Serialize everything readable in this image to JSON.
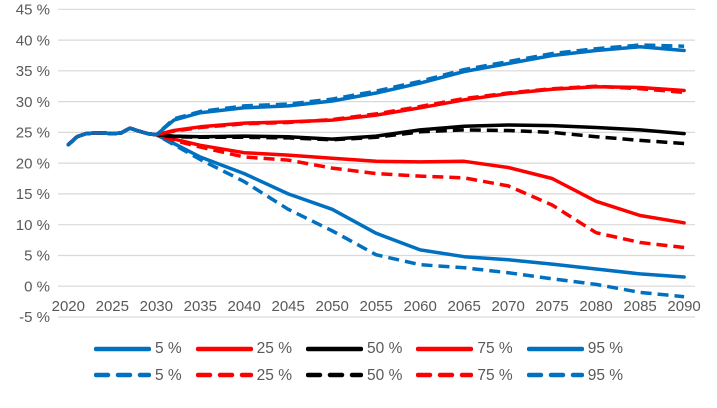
{
  "chart_data": {
    "type": "line",
    "title": "",
    "xlabel": "",
    "ylabel": "",
    "grid": "horizontal",
    "legend_position": "bottom",
    "ylim": [
      -5,
      45
    ],
    "y_tick_step": 5,
    "y_tick_labels": [
      "45 %",
      "40 %",
      "35 %",
      "30 %",
      "25 %",
      "20 %",
      "15 %",
      "10 %",
      "5 %",
      "0 %",
      "-5 %"
    ],
    "x_tick_years": [
      2020,
      2025,
      2030,
      2035,
      2040,
      2045,
      2050,
      2055,
      2060,
      2065,
      2070,
      2075,
      2080,
      2085,
      2090
    ],
    "x_tick_labels": [
      "2020",
      "2025",
      "2030",
      "2035",
      "2040",
      "2045",
      "2050",
      "2055",
      "2060",
      "2065",
      "2070",
      "2075",
      "2080",
      "2085",
      "2090"
    ],
    "x_years": [
      2020,
      2021,
      2022,
      2023,
      2024,
      2025,
      2026,
      2027,
      2028,
      2029,
      2030,
      2032,
      2035,
      2040,
      2045,
      2050,
      2055,
      2060,
      2065,
      2070,
      2075,
      2080,
      2085,
      2090
    ],
    "series": [
      {
        "id": "p5-solid",
        "label": "5 %",
        "color": "#0070C0",
        "dash": "solid",
        "values": [
          23.0,
          24.3,
          24.8,
          24.9,
          24.9,
          24.8,
          24.9,
          25.7,
          25.2,
          24.8,
          24.6,
          23.2,
          21.0,
          18.3,
          15.0,
          12.5,
          8.6,
          5.9,
          4.8,
          4.3,
          3.6,
          2.8,
          2.0,
          1.5
        ]
      },
      {
        "id": "p25-solid",
        "label": "25 %",
        "color": "#FF0000",
        "dash": "solid",
        "values": [
          23.0,
          24.3,
          24.8,
          24.9,
          24.9,
          24.8,
          24.9,
          25.7,
          25.2,
          24.8,
          24.6,
          23.9,
          22.9,
          21.7,
          21.3,
          20.8,
          20.3,
          20.2,
          20.3,
          19.3,
          17.5,
          13.8,
          11.5,
          10.3
        ]
      },
      {
        "id": "p50-solid",
        "label": "50 %",
        "color": "#000000",
        "dash": "solid",
        "values": [
          23.0,
          24.3,
          24.8,
          24.9,
          24.9,
          24.8,
          24.9,
          25.7,
          25.2,
          24.8,
          24.6,
          24.4,
          24.3,
          24.4,
          24.3,
          23.9,
          24.4,
          25.4,
          26.0,
          26.2,
          26.1,
          25.8,
          25.4,
          24.8
        ]
      },
      {
        "id": "p75-solid",
        "label": "75 %",
        "color": "#FF0000",
        "dash": "solid",
        "values": [
          23.0,
          24.3,
          24.8,
          24.9,
          24.9,
          24.8,
          24.9,
          25.7,
          25.2,
          24.8,
          24.6,
          25.3,
          25.9,
          26.5,
          26.7,
          27.0,
          27.8,
          29.0,
          30.3,
          31.3,
          32.0,
          32.4,
          32.3,
          31.8
        ]
      },
      {
        "id": "p95-solid",
        "label": "95 %",
        "color": "#0070C0",
        "dash": "solid",
        "values": [
          23.0,
          24.3,
          24.8,
          24.9,
          24.9,
          24.8,
          24.9,
          25.7,
          25.2,
          24.8,
          24.6,
          27.0,
          28.2,
          29.0,
          29.3,
          30.1,
          31.4,
          33.0,
          34.9,
          36.2,
          37.5,
          38.3,
          38.9,
          38.3
        ]
      },
      {
        "id": "p5-dashed",
        "label": "5 %",
        "color": "#0070C0",
        "dash": "dashed",
        "values": [
          23.0,
          24.3,
          24.8,
          24.9,
          24.9,
          24.8,
          24.9,
          25.7,
          25.2,
          24.8,
          24.6,
          23.0,
          20.6,
          17.0,
          12.5,
          9.0,
          5.1,
          3.5,
          3.0,
          2.2,
          1.2,
          0.3,
          -1.0,
          -1.7
        ]
      },
      {
        "id": "p25-dashed",
        "label": "25 %",
        "color": "#FF0000",
        "dash": "dashed",
        "values": [
          23.0,
          24.3,
          24.8,
          24.9,
          24.9,
          24.8,
          24.9,
          25.7,
          25.2,
          24.8,
          24.6,
          23.7,
          22.6,
          21.0,
          20.5,
          19.2,
          18.3,
          17.9,
          17.6,
          16.3,
          13.2,
          8.7,
          7.1,
          6.3
        ]
      },
      {
        "id": "p50-dashed",
        "label": "50 %",
        "color": "#000000",
        "dash": "dashed",
        "values": [
          23.0,
          24.3,
          24.8,
          24.9,
          24.9,
          24.8,
          24.9,
          25.7,
          25.2,
          24.8,
          24.6,
          24.3,
          24.2,
          24.2,
          24.1,
          23.8,
          24.2,
          25.1,
          25.4,
          25.3,
          25.0,
          24.3,
          23.7,
          23.2
        ]
      },
      {
        "id": "p75-dashed",
        "label": "75 %",
        "color": "#FF0000",
        "dash": "dashed",
        "values": [
          23.0,
          24.3,
          24.8,
          24.9,
          24.9,
          24.8,
          24.9,
          25.7,
          25.2,
          24.8,
          24.6,
          25.2,
          25.8,
          26.4,
          26.6,
          27.1,
          28.0,
          29.2,
          30.5,
          31.4,
          32.1,
          32.5,
          32.1,
          31.5
        ]
      },
      {
        "id": "p95-dashed",
        "label": "95 %",
        "color": "#0070C0",
        "dash": "dashed",
        "values": [
          23.0,
          24.3,
          24.8,
          24.9,
          24.9,
          24.8,
          24.9,
          25.7,
          25.2,
          24.8,
          24.6,
          27.2,
          28.4,
          29.3,
          29.6,
          30.4,
          31.7,
          33.3,
          35.2,
          36.5,
          37.8,
          38.6,
          39.2,
          39.0
        ]
      }
    ],
    "legend_rows": [
      [
        "p5-solid",
        "p25-solid",
        "p50-solid",
        "p75-solid",
        "p95-solid"
      ],
      [
        "p5-dashed",
        "p25-dashed",
        "p50-dashed",
        "p75-dashed",
        "p95-dashed"
      ]
    ],
    "colors": {
      "blue": "#0070C0",
      "red": "#FF0000",
      "black": "#000000",
      "gridline": "#D9D9D9",
      "tick_text": "#595959"
    }
  }
}
